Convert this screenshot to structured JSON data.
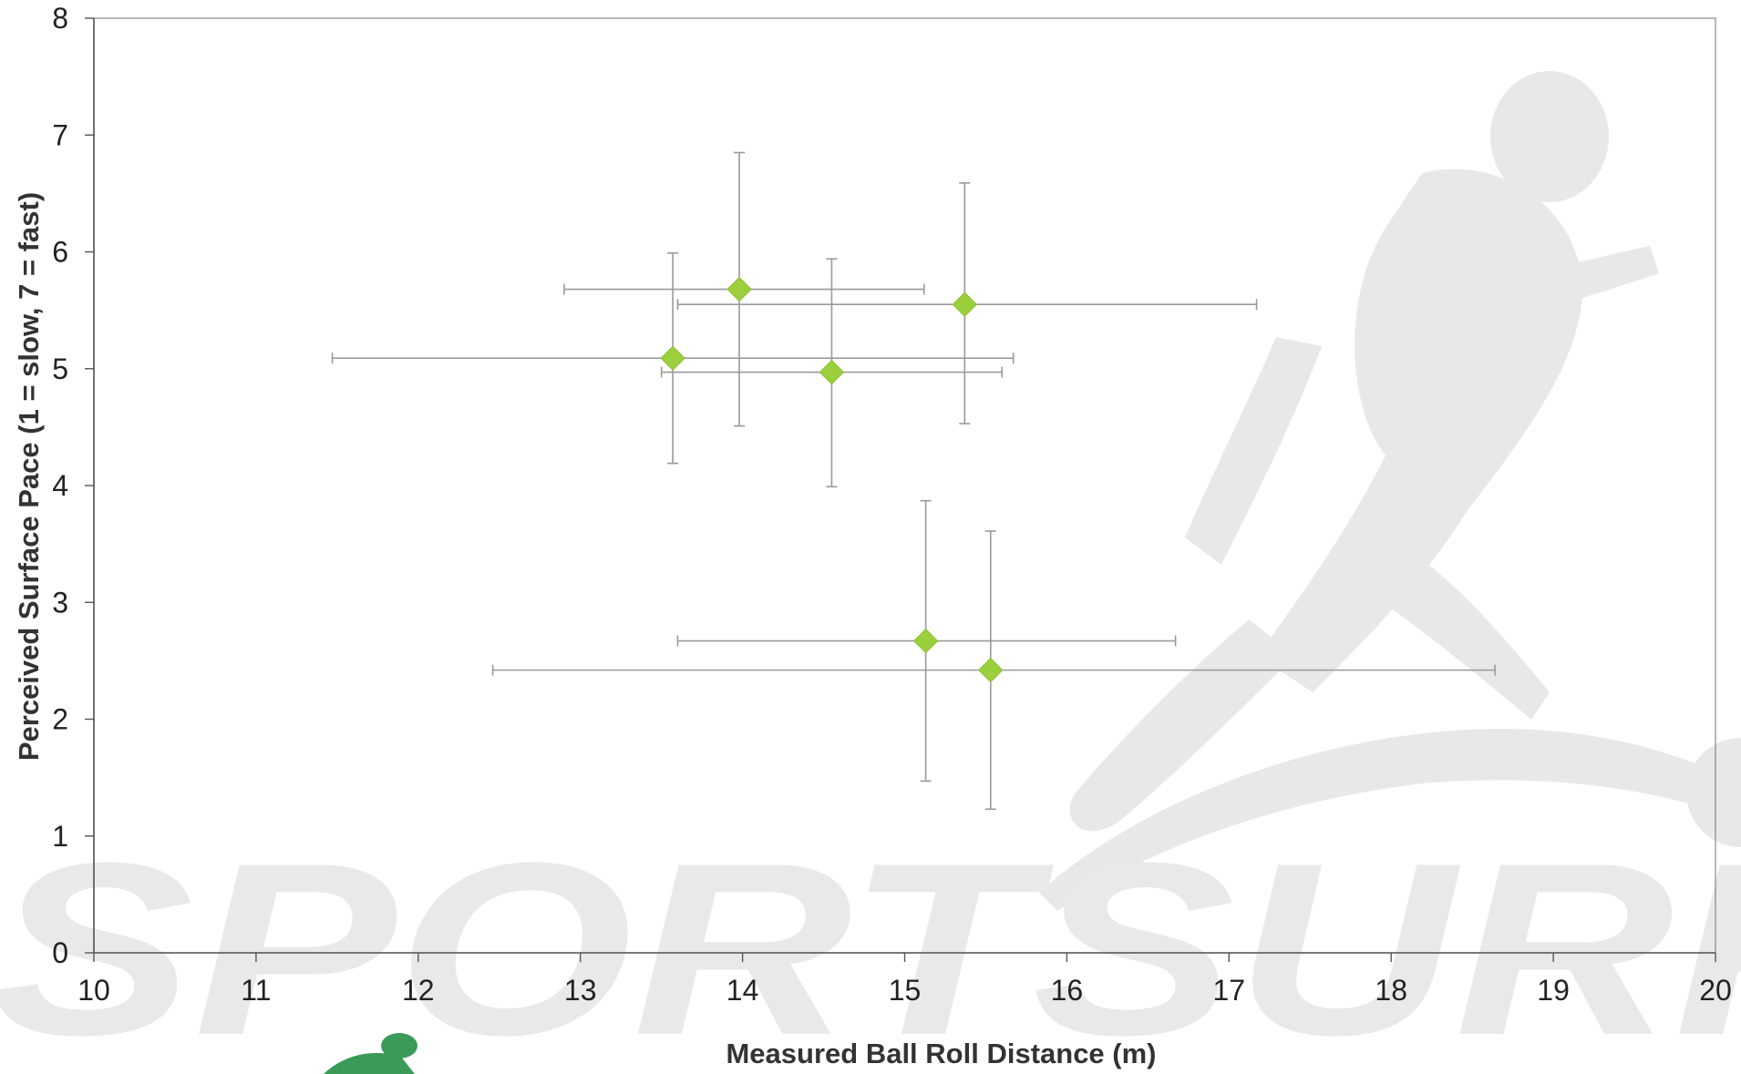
{
  "watermark": {
    "wordmark": "SPORTSURF"
  },
  "chart_data": {
    "type": "scatter",
    "title": "",
    "xlabel": "Measured Ball Roll Distance (m)",
    "ylabel": "Perceived Surface Pace (1 = slow, 7 = fast)",
    "xlim": [
      10,
      20
    ],
    "ylim": [
      0,
      8
    ],
    "xticks": [
      10,
      11,
      12,
      13,
      14,
      15,
      16,
      17,
      18,
      19,
      20
    ],
    "yticks": [
      0,
      1,
      2,
      3,
      4,
      5,
      6,
      7,
      8
    ],
    "grid": false,
    "legend": "none",
    "marker": "diamond",
    "marker_color": "#9bcf3c",
    "error_bar_color": "#9a9a9a",
    "points": [
      {
        "x": 13.57,
        "y": 5.09,
        "x_err_low": 11.47,
        "x_err_high": 15.67,
        "y_err_low": 4.19,
        "y_err_high": 5.99
      },
      {
        "x": 13.98,
        "y": 5.68,
        "x_err_low": 12.9,
        "x_err_high": 15.12,
        "y_err_low": 4.51,
        "y_err_high": 6.85
      },
      {
        "x": 14.55,
        "y": 4.97,
        "x_err_low": 13.5,
        "x_err_high": 15.6,
        "y_err_low": 3.99,
        "y_err_high": 5.94
      },
      {
        "x": 15.37,
        "y": 5.55,
        "x_err_low": 13.6,
        "x_err_high": 17.17,
        "y_err_low": 4.53,
        "y_err_high": 6.59
      },
      {
        "x": 15.13,
        "y": 2.67,
        "x_err_low": 13.6,
        "x_err_high": 16.67,
        "y_err_low": 1.47,
        "y_err_high": 3.87
      },
      {
        "x": 15.53,
        "y": 2.42,
        "x_err_low": 12.46,
        "x_err_high": 18.64,
        "y_err_low": 1.23,
        "y_err_high": 3.61
      }
    ]
  }
}
